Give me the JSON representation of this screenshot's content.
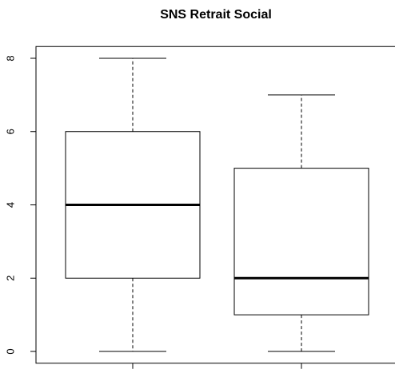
{
  "chart_data": {
    "type": "box",
    "title": "SNS Retrait Social",
    "categories": [
      null,
      null
    ],
    "boxes": [
      {
        "min": 0,
        "q1": 2,
        "median": 4,
        "q3": 6,
        "max": 8
      },
      {
        "min": 0,
        "q1": 1,
        "median": 2,
        "q3": 5,
        "max": 7
      }
    ],
    "color": "#ffffff",
    "ylim": [
      -0.32,
      8.32
    ],
    "yticks": [
      0,
      2,
      4,
      6,
      8
    ]
  }
}
